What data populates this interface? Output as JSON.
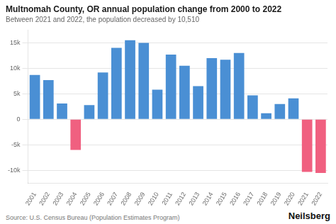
{
  "chart_data": {
    "type": "bar",
    "title": "Multnomah County, OR annual population change from 2000 to 2022",
    "subtitle": "Between 2021 and 2022, the population decreased by 10,510",
    "annotations": [
      "Source: U.S. Census Bureau (Population Estimates Program)",
      "Neilsberg"
    ],
    "categories": [
      "2001",
      "2002",
      "2003",
      "2004",
      "2005",
      "2006",
      "2007",
      "2008",
      "2009",
      "2010",
      "2011",
      "2012",
      "2013",
      "2014",
      "2015",
      "2016",
      "2017",
      "2018",
      "2019",
      "2020",
      "2021",
      "2022"
    ],
    "values": [
      8700,
      7700,
      3100,
      -6000,
      2800,
      9200,
      14000,
      15500,
      15000,
      5800,
      12700,
      10500,
      6500,
      12000,
      11700,
      13000,
      4700,
      1200,
      3000,
      4100,
      -10300,
      -10510
    ],
    "colors": [
      "#4a8fd4",
      "#4a8fd4",
      "#4a8fd4",
      "#f06080",
      "#4a8fd4",
      "#4a8fd4",
      "#4a8fd4",
      "#4a8fd4",
      "#4a8fd4",
      "#4a8fd4",
      "#4a8fd4",
      "#4a8fd4",
      "#4a8fd4",
      "#4a8fd4",
      "#4a8fd4",
      "#4a8fd4",
      "#4a8fd4",
      "#4a8fd4",
      "#4a8fd4",
      "#4a8fd4",
      "#f06080",
      "#f06080"
    ],
    "ylim": [
      -12500,
      17500
    ],
    "yticks": [
      {
        "value": -10000,
        "label": "-10k"
      },
      {
        "value": -5000,
        "label": "-5k"
      },
      0,
      {
        "value": 5000,
        "label": "5k"
      },
      {
        "value": 10000,
        "label": "10k"
      },
      {
        "value": 15000,
        "label": "15k"
      }
    ],
    "grid": true
  }
}
